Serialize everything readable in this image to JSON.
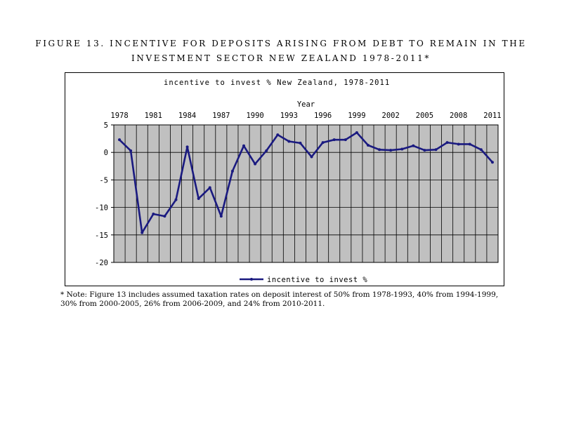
{
  "figure": {
    "title_line1": "FIGURE 13. INCENTIVE FOR DEPOSITS ARISING FROM DEBT TO REMAIN IN THE",
    "title_line2": "INVESTMENT SECTOR NEW ZEALAND 1978-2011*"
  },
  "note": "* Note: Figure 13 includes assumed taxation rates on deposit interest of 50% from 1978-1993, 40% from 1994-1999, 30% from 2000-2005, 26% from 2006-2009, and 24% from 2010-2011.",
  "colors": {
    "series": "#1a1a80",
    "plot_bg": "#c0c0c0",
    "grid": "#000000"
  },
  "chart_data": {
    "type": "line",
    "title": "incentive to invest % New Zealand, 1978-2011",
    "xlabel": "Year",
    "ylabel": "",
    "x_axis_position": "top",
    "xlim": [
      1978,
      2011
    ],
    "ylim": [
      -20,
      5
    ],
    "x_tick_labels": [
      "1978",
      "1981",
      "1984",
      "1987",
      "1990",
      "1993",
      "1996",
      "1999",
      "2002",
      "2005",
      "2008",
      "2011"
    ],
    "y_tick_labels": [
      "5",
      "0",
      "-5",
      "-10",
      "-15",
      "-20"
    ],
    "y_ticks": [
      5,
      0,
      -5,
      -10,
      -15,
      -20
    ],
    "grid": true,
    "legend_position": "bottom",
    "x": [
      1978,
      1979,
      1980,
      1981,
      1982,
      1983,
      1984,
      1985,
      1986,
      1987,
      1988,
      1989,
      1990,
      1991,
      1992,
      1993,
      1994,
      1995,
      1996,
      1997,
      1998,
      1999,
      2000,
      2001,
      2002,
      2003,
      2004,
      2005,
      2006,
      2007,
      2008,
      2009,
      2010,
      2011
    ],
    "series": [
      {
        "name": "incentive to invest %",
        "values": [
          2.3,
          0.3,
          -14.6,
          -11.2,
          -11.6,
          -8.6,
          1.0,
          -8.4,
          -6.4,
          -11.6,
          -3.4,
          1.2,
          -2.1,
          0.3,
          3.2,
          2.0,
          1.7,
          -0.8,
          1.8,
          2.3,
          2.3,
          3.6,
          1.3,
          0.5,
          0.4,
          0.6,
          1.2,
          0.4,
          0.5,
          1.8,
          1.5,
          1.5,
          0.5,
          -1.8
        ]
      }
    ]
  }
}
